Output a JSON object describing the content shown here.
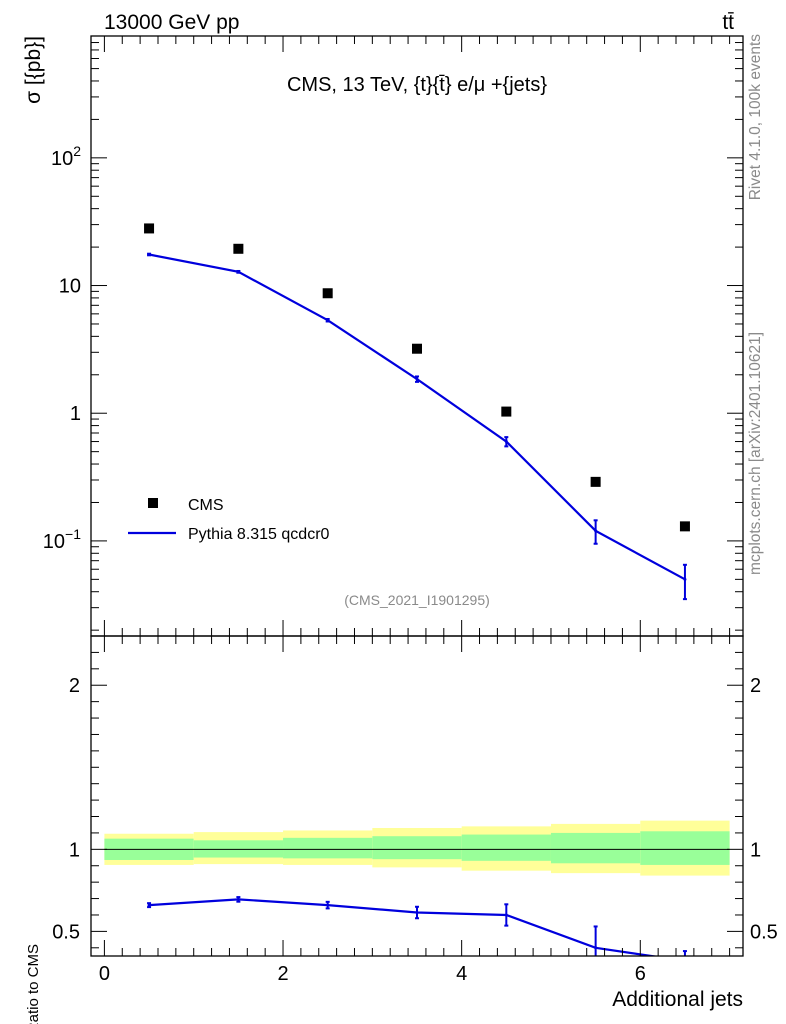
{
  "header": {
    "left_label": "13000 GeV pp",
    "right_label": "tt̄"
  },
  "side_labels": {
    "rivet": "Rivet 4.1.0,  100k events",
    "mcplots": "mcplots.cern.ch [arXiv:2401.10621]"
  },
  "chart_data": [
    {
      "type": "scatter",
      "panel": "main",
      "title": "CMS, 13 TeV, {t}{t̄} e/μ +{jets}",
      "watermark": "(CMS_2021_I1901295)",
      "ylabel": "σ [{pb}]",
      "xlabel": "",
      "yscale": "log",
      "xlim": [
        -0.15,
        7.15
      ],
      "ylim": [
        0.018,
        900
      ],
      "y_ticks": [
        {
          "value": 0.1,
          "label_base": "10",
          "label_exp": "−1"
        },
        {
          "value": 1,
          "label_base": "1",
          "label_exp": ""
        },
        {
          "value": 10,
          "label_base": "10",
          "label_exp": ""
        },
        {
          "value": 100,
          "label_base": "10",
          "label_exp": "2"
        }
      ],
      "legend_position": "bottom-left",
      "series": [
        {
          "name": "CMS",
          "style": "markers",
          "color": "#000000",
          "x": [
            0.5,
            1.5,
            2.5,
            3.5,
            4.5,
            5.5,
            6.5
          ],
          "y": [
            28.0,
            19.4,
            8.7,
            3.2,
            1.03,
            0.29,
            0.13
          ]
        },
        {
          "name": "Pythia 8.315 qcdcr0",
          "style": "line",
          "color": "#0000dd",
          "x": [
            0.5,
            1.5,
            2.5,
            3.5,
            4.5,
            5.5,
            6.5
          ],
          "y": [
            17.5,
            12.8,
            5.35,
            1.85,
            0.6,
            0.12,
            0.05
          ],
          "err_low": [
            0.25,
            0.2,
            0.12,
            0.09,
            0.05,
            0.025,
            0.015
          ],
          "err_high": [
            0.25,
            0.2,
            0.12,
            0.09,
            0.05,
            0.025,
            0.015
          ]
        }
      ]
    },
    {
      "type": "line",
      "panel": "ratio",
      "ylabel": "Ratio to CMS",
      "xlabel": "Additional jets",
      "xlim": [
        -0.15,
        7.15
      ],
      "ylim": [
        0.35,
        2.3
      ],
      "x_ticks": [
        0,
        2,
        4,
        6
      ],
      "y_ticks": [
        0.5,
        1,
        2
      ],
      "reference_line": 1,
      "bands": {
        "edges": [
          0,
          1,
          2,
          3,
          4,
          5,
          6,
          7
        ],
        "inner_low": [
          0.935,
          0.95,
          0.945,
          0.94,
          0.93,
          0.915,
          0.905
        ],
        "inner_high": [
          1.065,
          1.055,
          1.07,
          1.08,
          1.09,
          1.1,
          1.11
        ],
        "outer_low": [
          0.905,
          0.91,
          0.905,
          0.89,
          0.87,
          0.855,
          0.84
        ],
        "outer_high": [
          1.095,
          1.105,
          1.115,
          1.13,
          1.14,
          1.155,
          1.175
        ],
        "inner_color": "#99ff99",
        "outer_color": "#ffff99"
      },
      "series": [
        {
          "name": "Pythia 8.315 qcdcr0",
          "color": "#0000dd",
          "x": [
            0.5,
            1.5,
            2.5,
            3.5,
            4.5,
            5.5,
            6.5
          ],
          "y": [
            0.66,
            0.695,
            0.66,
            0.615,
            0.6,
            0.4,
            0.32
          ],
          "err": [
            0.012,
            0.014,
            0.02,
            0.035,
            0.065,
            0.13,
            0.06
          ]
        }
      ]
    }
  ]
}
